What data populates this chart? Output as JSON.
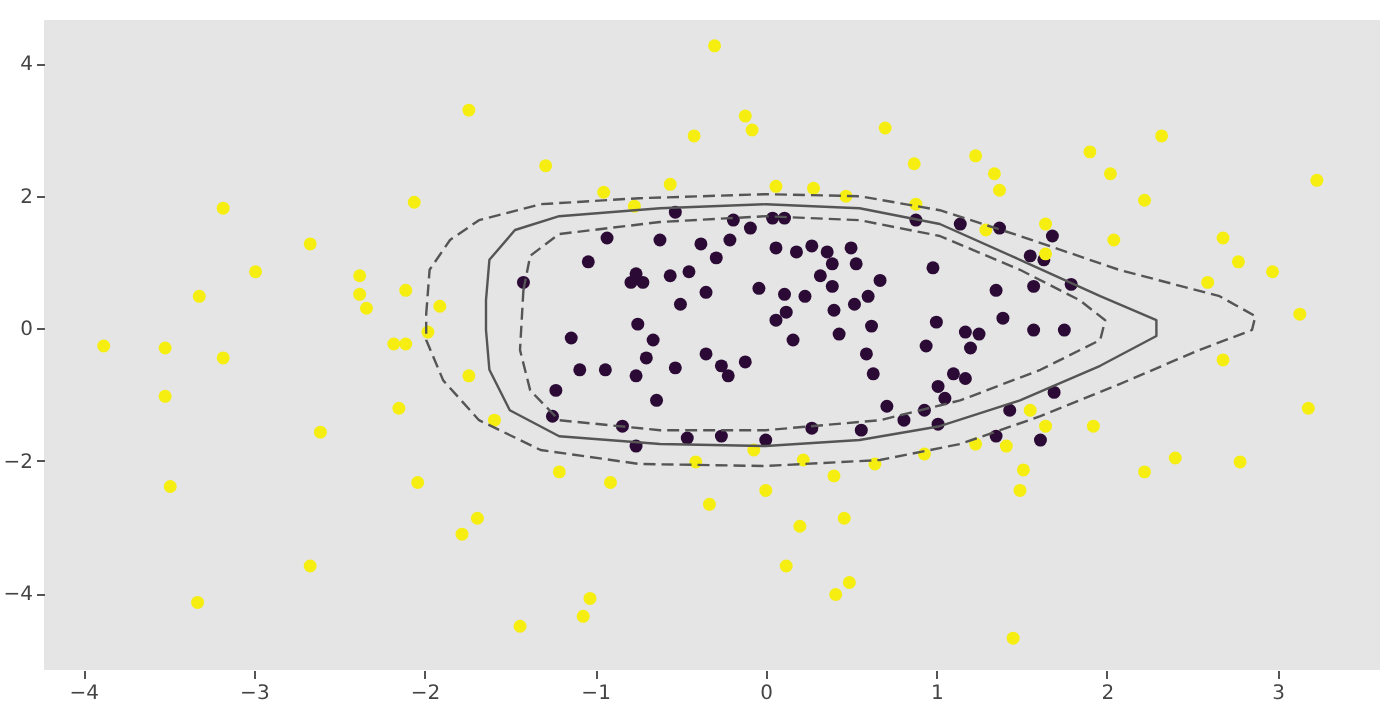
{
  "chart_data": {
    "type": "scatter",
    "xlim": [
      -4.23,
      3.6
    ],
    "ylim": [
      -5.16,
      4.65
    ],
    "xticks": [
      -4,
      -3,
      -2,
      -1,
      0,
      1,
      2,
      3
    ],
    "yticks": [
      -4,
      -2,
      0,
      2,
      4
    ],
    "grid": false,
    "marker": "circle",
    "series": [
      {
        "color": "#2b0a35",
        "x": [
          -1.42,
          -0.53,
          -0.19,
          -0.09,
          -0.93,
          -0.62,
          -0.38,
          -0.21,
          0.06,
          0.18,
          0.36,
          0.04,
          0.11,
          0.27,
          0.53,
          0.67,
          0.6,
          0.5,
          0.88,
          1.14,
          1.37,
          1.55,
          1.68,
          1.57,
          1.35,
          1.39,
          1.0,
          1.17,
          1.2,
          1.25,
          1.57,
          1.75,
          1.79,
          1.63,
          0.98,
          0.32,
          0.39,
          0.62,
          1.1,
          0.94,
          1.01,
          1.17,
          1.43,
          1.69,
          1.61,
          1.35,
          1.01,
          1.05,
          0.06,
          0.16,
          -0.12,
          0.12,
          0.43,
          0.59,
          0.63,
          0.71,
          0.81,
          0.93,
          0.56,
          0.27,
          0.0,
          -0.26,
          -0.46,
          -0.76,
          -1.23,
          -1.25,
          -1.09,
          -0.94,
          -0.76,
          -0.66,
          -0.35,
          -0.26,
          -0.7,
          -0.53,
          -0.22,
          -0.84,
          -0.64,
          -1.14,
          -0.75,
          -1.04,
          -0.79,
          -0.72,
          -0.76,
          -0.56,
          -0.45,
          -0.35,
          -0.5,
          -0.29,
          0.23,
          0.4,
          0.52,
          0.39,
          -0.04,
          0.11
        ],
        "values": [
          0.69,
          1.75,
          1.63,
          1.51,
          1.36,
          1.33,
          1.27,
          1.33,
          1.21,
          1.15,
          1.15,
          1.66,
          1.66,
          1.24,
          0.97,
          0.72,
          0.48,
          1.21,
          1.63,
          1.57,
          1.51,
          1.09,
          1.39,
          0.63,
          0.57,
          0.15,
          0.09,
          -0.06,
          -0.3,
          -0.09,
          -0.03,
          -0.03,
          0.66,
          1.03,
          0.91,
          0.79,
          0.63,
          0.03,
          -0.69,
          -0.27,
          -0.88,
          -0.76,
          -1.24,
          -0.97,
          -1.69,
          -1.63,
          -1.45,
          -1.06,
          0.12,
          -0.18,
          -0.51,
          0.24,
          -0.09,
          -0.39,
          -0.69,
          -1.18,
          -1.39,
          -1.24,
          -1.54,
          -1.51,
          -1.69,
          -1.63,
          -1.66,
          -1.78,
          -0.94,
          -1.33,
          -0.63,
          -0.63,
          -0.72,
          -0.18,
          -0.39,
          -0.57,
          -0.45,
          -0.6,
          -0.72,
          -1.48,
          -1.09,
          -0.15,
          0.06,
          1.0,
          0.69,
          0.69,
          0.82,
          0.79,
          0.85,
          0.54,
          0.36,
          1.06,
          0.48,
          0.27,
          0.36,
          0.97,
          0.6,
          0.51
        ]
      },
      {
        "color": "#f5ee10",
        "x": [
          -1.74,
          -3.18,
          -2.06,
          -2.67,
          -2.99,
          -3.32,
          -2.38,
          -2.38,
          -2.34,
          -2.11,
          -1.91,
          -3.88,
          -3.52,
          -3.18,
          -2.18,
          -2.11,
          -1.98,
          -1.74,
          -3.52,
          -2.15,
          -2.61,
          -2.04,
          -3.49,
          -1.69,
          -1.78,
          -2.67,
          -3.33,
          -1.59,
          -0.3,
          -0.12,
          -0.08,
          -0.42,
          0.7,
          2.32,
          -1.29,
          -0.95,
          -0.56,
          0.06,
          0.28,
          0.47,
          -0.77,
          0.87,
          0.88,
          1.23,
          1.34,
          1.37,
          1.9,
          2.02,
          2.22,
          3.23,
          1.29,
          1.64,
          2.04,
          2.68,
          2.77,
          2.97,
          2.59,
          3.13,
          1.64,
          2.68,
          3.18,
          1.55,
          1.64,
          1.92,
          1.41,
          1.23,
          1.51,
          1.49,
          2.22,
          2.4,
          2.78,
          0.93,
          -1.21,
          -0.91,
          -0.41,
          -0.33,
          -0.07,
          0.0,
          0.4,
          0.64,
          0.22,
          0.2,
          0.46,
          0.12,
          0.49,
          0.41,
          -1.03,
          -1.07,
          -1.44,
          1.45
        ],
        "values": [
          3.29,
          1.81,
          1.9,
          1.27,
          0.85,
          0.48,
          0.79,
          0.51,
          0.3,
          0.57,
          0.33,
          -0.27,
          -0.3,
          -0.45,
          -0.24,
          -0.24,
          -0.06,
          -0.72,
          -1.03,
          -1.21,
          -1.57,
          -2.33,
          -2.39,
          -2.87,
          -3.11,
          -3.59,
          -4.14,
          -1.39,
          4.26,
          3.2,
          2.99,
          2.9,
          3.02,
          2.9,
          2.45,
          2.05,
          2.17,
          2.14,
          2.11,
          1.99,
          1.84,
          2.48,
          1.87,
          2.6,
          2.33,
          2.08,
          2.66,
          2.33,
          1.93,
          2.23,
          1.48,
          1.57,
          1.33,
          1.36,
          1.0,
          0.85,
          0.69,
          0.21,
          1.12,
          -0.48,
          -1.21,
          -1.24,
          -1.48,
          -1.48,
          -1.78,
          -1.75,
          -2.14,
          -2.45,
          -2.17,
          -1.96,
          -2.02,
          -1.9,
          -2.17,
          -2.33,
          -2.02,
          -2.66,
          -1.84,
          -2.45,
          -2.23,
          -2.05,
          -1.99,
          -2.99,
          -2.87,
          -3.59,
          -3.84,
          -4.02,
          -4.08,
          -4.35,
          -4.5,
          -4.68
        ]
      }
    ]
  }
}
